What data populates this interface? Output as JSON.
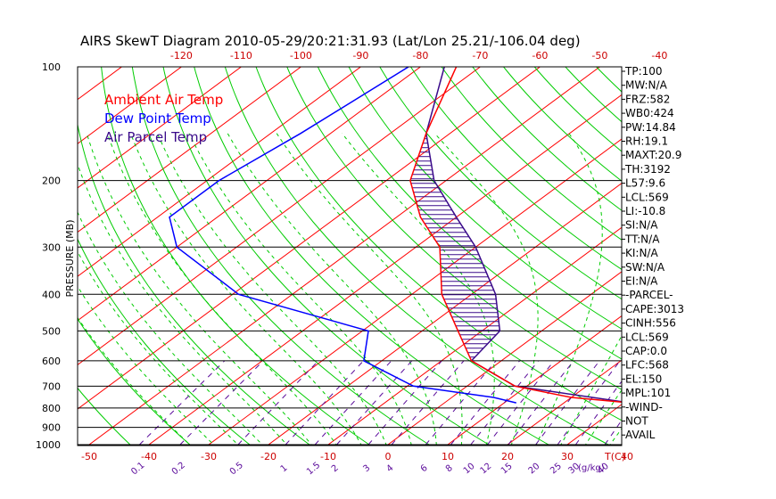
{
  "title": "AIRS SkewT Diagram 2010-05-29/20:21:31.93 (Lat/Lon 25.21/-106.04 deg)",
  "colors": {
    "ambient": "#ff0000",
    "dewpoint": "#0000ff",
    "parcel": "#3a0a8a",
    "isotherm": "#ff0000",
    "dryadiabat": "#00cc00",
    "moistadiabat": "#00cc00",
    "mixing": "#5a0a9a",
    "pressure": "#000000"
  },
  "chart_data": {
    "type": "line",
    "title": "AIRS SkewT Diagram 2010-05-29/20:21:31.93 (Lat/Lon 25.21/-106.04 deg)",
    "ylabel": "PRESSURE (MB)",
    "xlabel_unit": "T(C)",
    "mixing_unit": "g/kg",
    "pressure_ticks": [
      100,
      200,
      300,
      400,
      500,
      600,
      700,
      800,
      900,
      1000
    ],
    "top_temperature_ticks": [
      -120,
      -110,
      -100,
      -90,
      -80,
      -70,
      -60,
      -50,
      -40
    ],
    "bottom_temperature_ticks": [
      -50,
      -40,
      -30,
      -20,
      -10,
      0,
      10,
      20,
      30,
      40
    ],
    "mixing_ratio_labels": [
      "0.1",
      "0.2",
      "0.5",
      "1",
      "1.5",
      "2",
      "3",
      "4",
      "6",
      "8",
      "10",
      "12",
      "15",
      "20",
      "25",
      "30",
      "40"
    ],
    "legend": [
      "Ambient Air Temp",
      "Dew Point Temp",
      "Air Parcel Temp"
    ],
    "series": [
      {
        "name": "Ambient Air Temp",
        "points": [
          [
            100,
            -74
          ],
          [
            150,
            -64
          ],
          [
            200,
            -56
          ],
          [
            250,
            -46
          ],
          [
            300,
            -36
          ],
          [
            400,
            -25
          ],
          [
            500,
            -14
          ],
          [
            600,
            -5
          ],
          [
            700,
            8
          ],
          [
            750,
            20
          ],
          [
            775,
            31
          ]
        ]
      },
      {
        "name": "Dew Point Temp",
        "points": [
          [
            100,
            -82
          ],
          [
            150,
            -85
          ],
          [
            200,
            -88
          ],
          [
            250,
            -88
          ],
          [
            300,
            -80
          ],
          [
            400,
            -59
          ],
          [
            500,
            -29
          ],
          [
            600,
            -23
          ],
          [
            700,
            -9
          ],
          [
            750,
            7
          ],
          [
            775,
            12
          ]
        ]
      },
      {
        "name": "Air Parcel Temp",
        "points": [
          [
            775,
            31
          ],
          [
            700,
            8
          ],
          [
            600,
            -5
          ],
          [
            500,
            -7
          ],
          [
            400,
            -16
          ],
          [
            300,
            -30
          ],
          [
            250,
            -40
          ],
          [
            200,
            -52
          ],
          [
            150,
            -64
          ],
          [
            100,
            -76
          ]
        ]
      }
    ],
    "indices": [
      "TP:100",
      "MW:N/A",
      "FRZ:582",
      "WB0:424",
      "PW:14.84",
      "RH:19.1",
      "MAXT:20.9",
      "TH:3192",
      "L57:9.6",
      "LCL:569",
      "LI:-10.8",
      "SI:N/A",
      "TT:N/A",
      "KI:N/A",
      "SW:N/A",
      "EI:N/A",
      "-PARCEL-",
      "CAPE:3013",
      "CINH:556",
      "LCL:569",
      "CAP:0.0",
      "LFC:568",
      "EL:150",
      "MPL:101",
      "-WIND-",
      "NOT",
      "AVAIL"
    ]
  }
}
